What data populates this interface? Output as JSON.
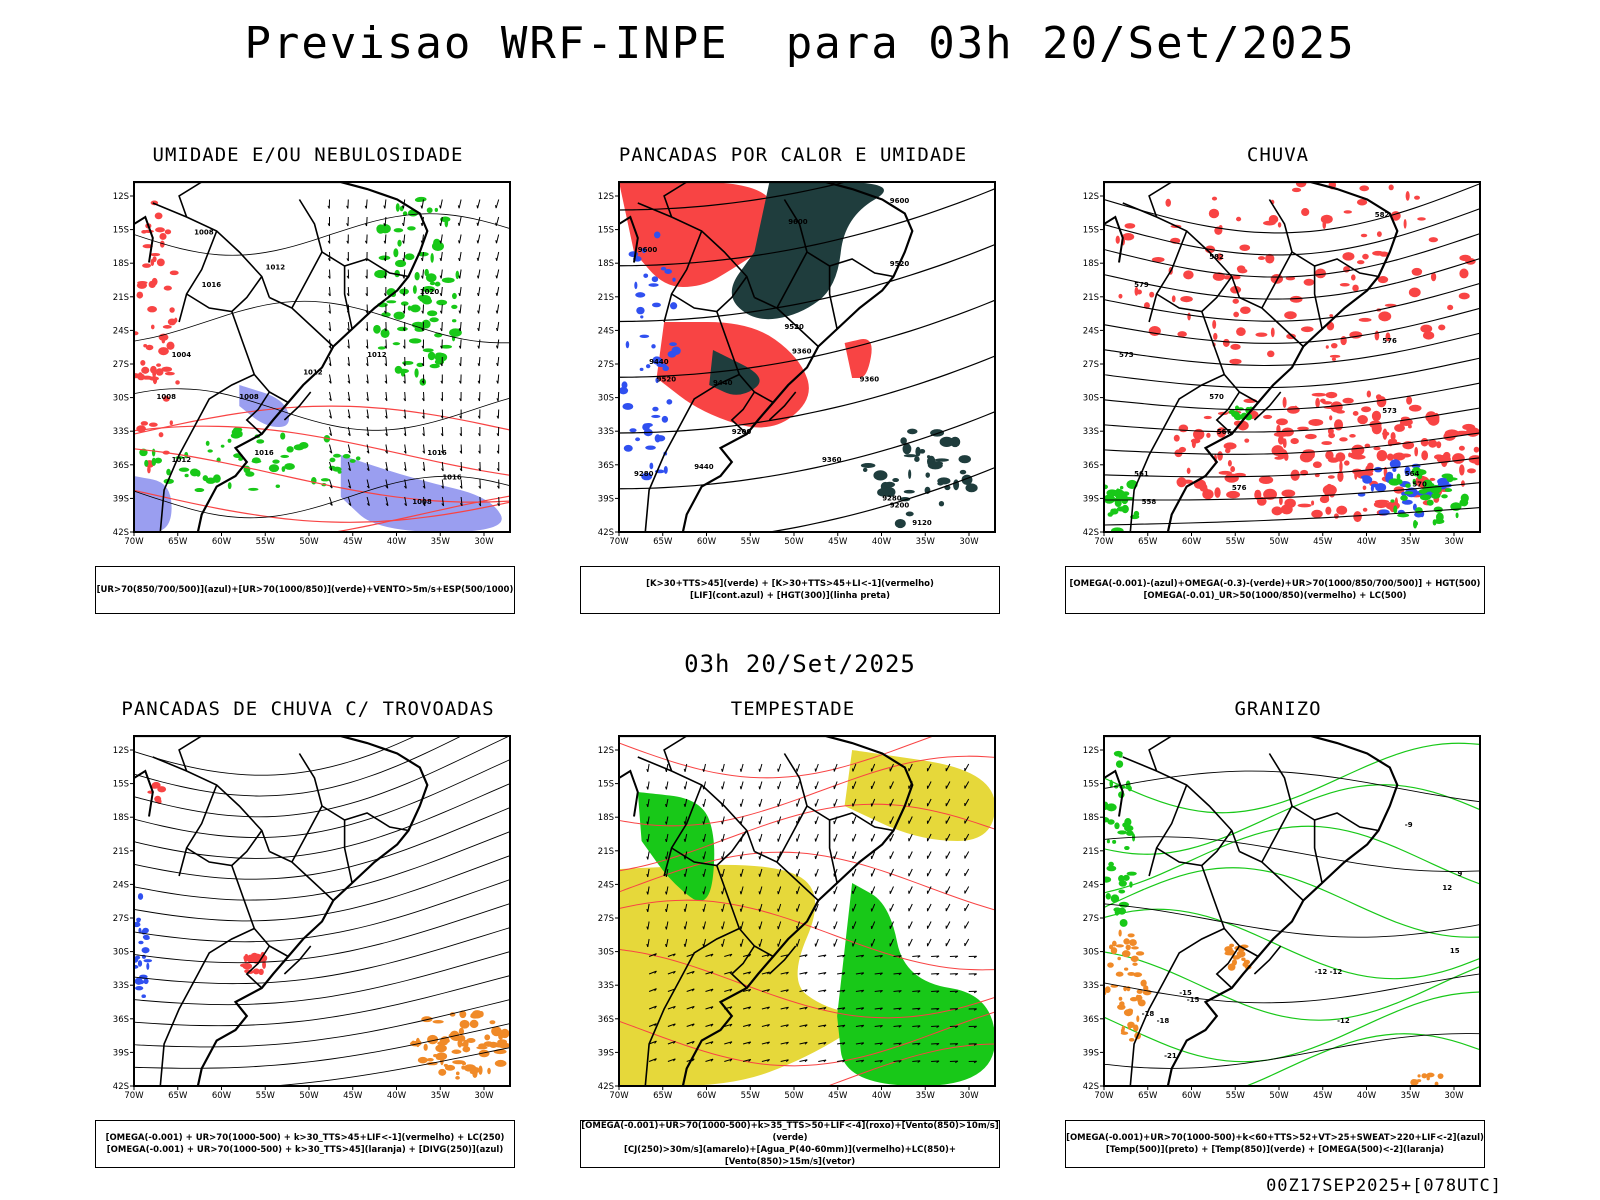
{
  "main_title": "Previsao WRF-INPE  para 03h 20/Set/2025",
  "mid_title": "03h 20/Set/2025",
  "footer": "00Z17SEP2025+[078UTC]",
  "lat_labels": [
    "12S",
    "15S",
    "18S",
    "21S",
    "24S",
    "27S",
    "30S",
    "33S",
    "36S",
    "39S",
    "42S"
  ],
  "lon_labels": [
    "70W",
    "65W",
    "60W",
    "55W",
    "50W",
    "45W",
    "40W",
    "35W",
    "30W"
  ],
  "panels": [
    {
      "title": "UMIDADE E/OU NEBULOSIDADE",
      "caption": [
        "[UR>70(850/700/500)](azul)+[UR>70(1000/850)](verde)+VENTO>5m/s+ESP(500/1000)"
      ],
      "contour_labels": [
        "1008",
        "1012",
        "1016",
        "1020",
        "1004",
        "1008",
        "1012",
        "1016",
        "1008",
        "1012",
        "1016",
        "1012",
        "1008",
        "1016"
      ]
    },
    {
      "title": "PANCADAS POR CALOR E UMIDADE",
      "caption": [
        "[K>30+TTS>45](verde) + [K>30+TTS>45+LI<-1](vermelho)",
        "[LIF](cont.azul) + [HGT(300)](linha preta)"
      ],
      "contour_labels": [
        "9600",
        "9600",
        "9520",
        "9600",
        "9520",
        "9360",
        "9440",
        "9520",
        "9440",
        "9360",
        "9200",
        "9280",
        "9440",
        "9360",
        "9280",
        "9200",
        "9120"
      ]
    },
    {
      "title": "CHUVA",
      "caption": [
        "[OMEGA(-0.001)-(azul)+OMEGA(-0.3)-(verde)+UR>70(1000/850/700/500)] + HGT(500)",
        "[OMEGA(-0.01)_UR>50(1000/850)(vermelho) + LC(500)"
      ],
      "contour_labels": [
        "582",
        "582",
        "579",
        "576",
        "573",
        "570",
        "567",
        "564",
        "561",
        "558",
        "576",
        "573",
        "570"
      ]
    },
    {
      "title": "PANCADAS DE CHUVA C/ TROVOADAS",
      "caption": [
        "[OMEGA(-0.001) + UR>70(1000-500) + k>30_TTS>45+LIF<-1](vermelho) + LC(250)",
        "[OMEGA(-0.001) + UR>70(1000-500) + k>30_TTS>45](laranja) + [DIVG(250)](azul)"
      ],
      "contour_labels": []
    },
    {
      "title": "TEMPESTADE",
      "caption": [
        "[OMEGA(-0.001)+UR>70(1000-500)+k>35_TTS>50+LIF<-4](roxo)+[Vento(850)>10m/s](verde)",
        "[CJ(250)>30m/s](amarelo)+[Agua_P(40-60mm)](vermelho)+LC(850)+[Vento(850)>15m/s](vetor)"
      ],
      "contour_labels": []
    },
    {
      "title": "GRANIZO",
      "caption": [
        "[OMEGA(-0.001)+UR>70(1000-500)+k<60+TTS>52+VT>25+SWEAT>220+LIF<-2](azul)",
        "[Temp(500)](preto) + [Temp(850)](verde) + [OMEGA(500)<-2](laranja)"
      ],
      "contour_labels": [
        "-9",
        "-12",
        "-12",
        "-12",
        "-15",
        "-18",
        "-21",
        "-15",
        "-18",
        "12",
        "15",
        "9"
      ]
    }
  ],
  "colors": {
    "red": "#f84444",
    "green": "#18c818",
    "blue": "#3050f0",
    "lavender": "#9a9ef0",
    "darkgreen": "#1f3d3d",
    "yellow": "#e6d83a",
    "orange": "#f08a28",
    "contour": "#000000"
  }
}
